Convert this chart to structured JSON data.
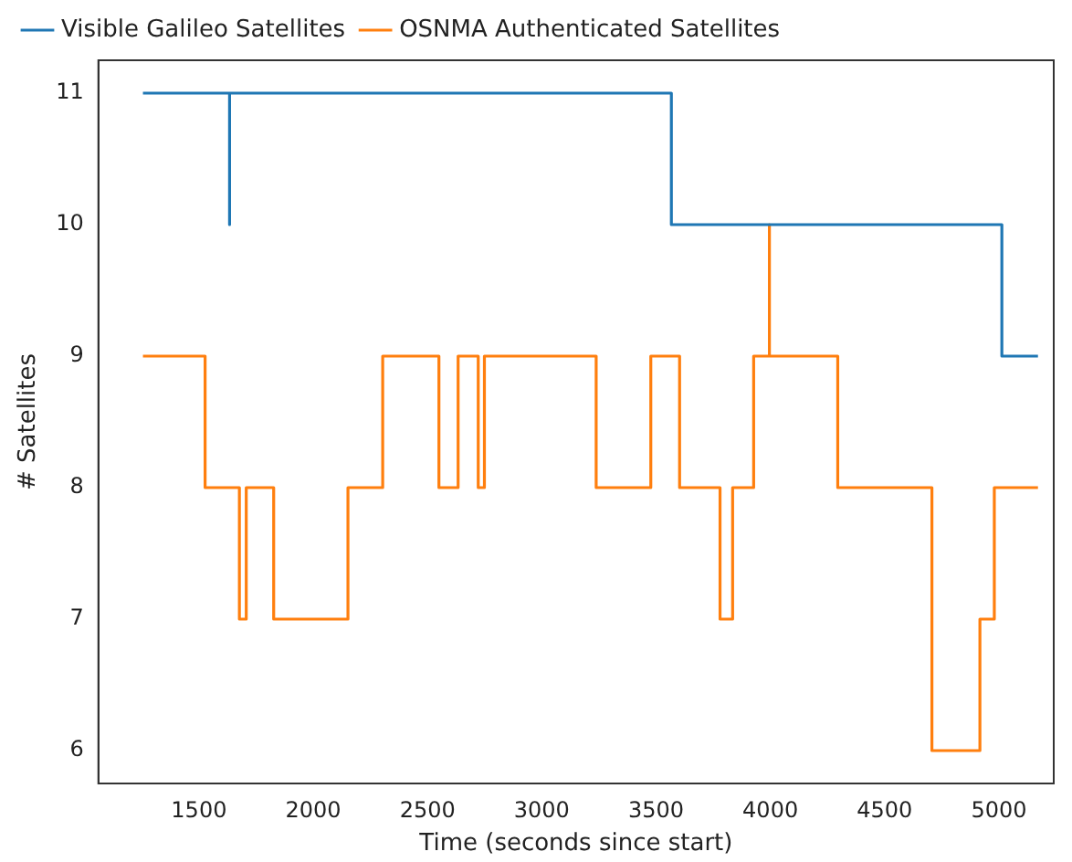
{
  "chart_data": {
    "type": "step",
    "xlabel": "Time (seconds since start)",
    "ylabel": "# Satellites",
    "series": [
      {
        "name": "Visible Galileo Satellites",
        "color": "#1f77b4",
        "x": [
          1255,
          1634,
          1634,
          3567,
          5013,
          5171
        ],
        "values": [
          11,
          10,
          11,
          10,
          9,
          9
        ]
      },
      {
        "name": "OSNMA Authenticated Satellites",
        "color": "#ff7f0e",
        "x": [
          1255,
          1527,
          1677,
          1707,
          1827,
          2152,
          2304,
          2550,
          2634,
          2722,
          2749,
          3238,
          3477,
          3603,
          3780,
          3835,
          3927,
          3996,
          3996,
          4295,
          4707,
          4917,
          4980,
          5171
        ],
        "values": [
          9,
          8,
          7,
          8,
          7,
          8,
          9,
          8,
          9,
          8,
          9,
          8,
          9,
          8,
          7,
          8,
          9,
          10,
          9,
          8,
          6,
          7,
          8,
          8
        ]
      }
    ],
    "xlim": [
      1060,
      5240
    ],
    "xticks": [
      1500,
      2000,
      2500,
      3000,
      3500,
      4000,
      4500,
      5000
    ],
    "ylim": [
      5.75,
      11.25
    ],
    "yticks": [
      6,
      7,
      8,
      9,
      10,
      11
    ],
    "grid": false,
    "legend": "top",
    "marker": "none",
    "line_style": "solid"
  }
}
